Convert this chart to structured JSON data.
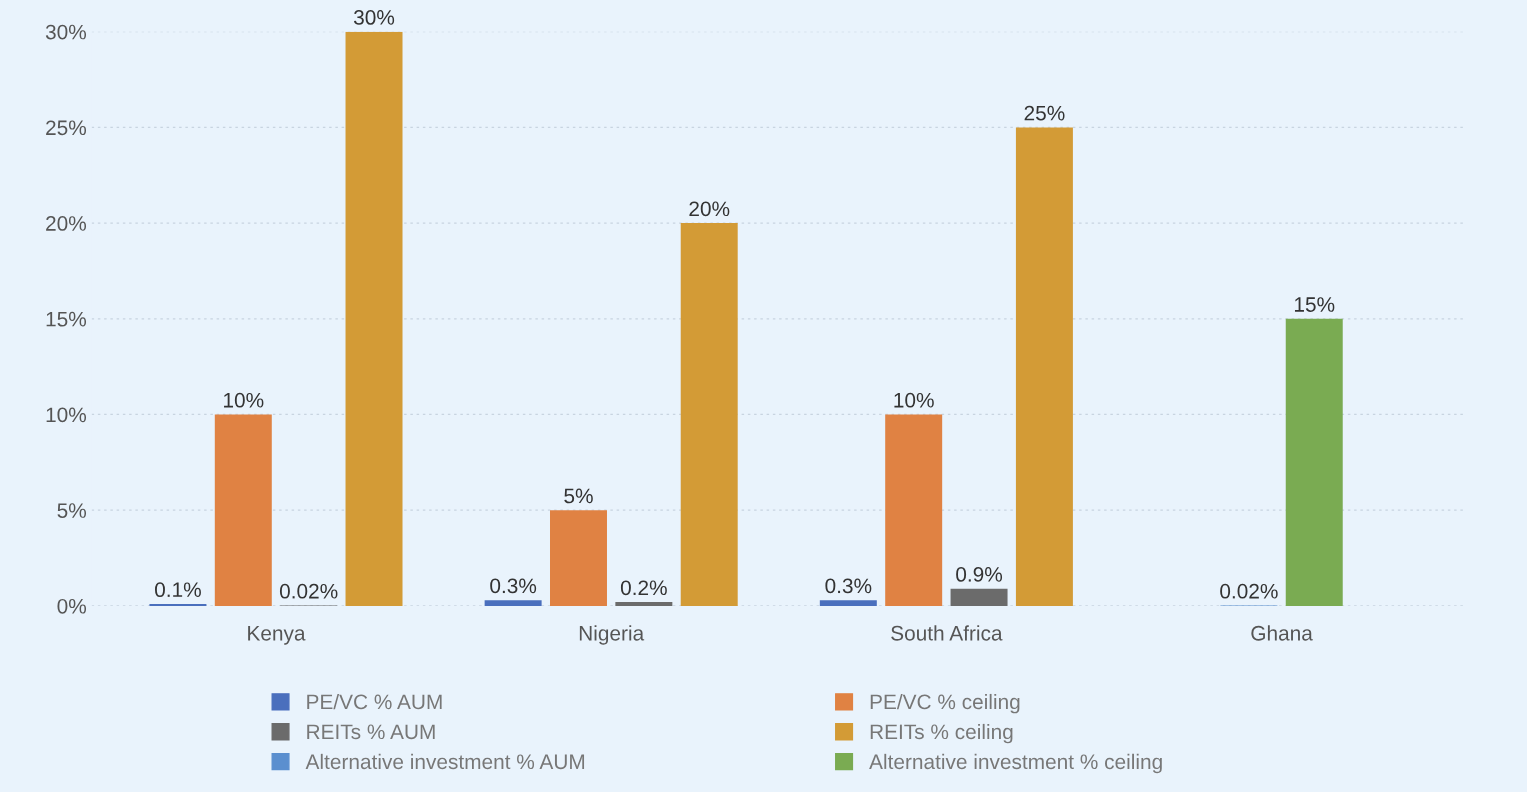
{
  "chart_data": {
    "type": "bar",
    "categories": [
      "Kenya",
      "Nigeria",
      "South Africa",
      "Ghana"
    ],
    "series": [
      {
        "name": "PE/VC % AUM",
        "color": "#4a6fbd",
        "values": [
          0.1,
          0.3,
          0.3,
          null
        ],
        "value_labels": [
          "0.1%",
          "0.3%",
          "0.3%",
          null
        ]
      },
      {
        "name": "PE/VC % ceiling",
        "color": "#e08243",
        "values": [
          10,
          5,
          10,
          null
        ],
        "value_labels": [
          "10%",
          "5%",
          "10%",
          null
        ]
      },
      {
        "name": "REITs % AUM",
        "color": "#6b6b6b",
        "values": [
          0.02,
          0.2,
          0.9,
          null
        ],
        "value_labels": [
          "0.02%",
          "0.2%",
          "0.9%",
          null
        ]
      },
      {
        "name": "REITs % ceiling",
        "color": "#d39b36",
        "values": [
          30,
          20,
          25,
          null
        ],
        "value_labels": [
          "30%",
          "20%",
          "25%",
          null
        ]
      },
      {
        "name": "Alternative investment % AUM",
        "color": "#5b8fcf",
        "values": [
          null,
          null,
          null,
          0.02
        ],
        "value_labels": [
          null,
          null,
          null,
          "0.02%"
        ]
      },
      {
        "name": "Alternative investment % ceiling",
        "color": "#7aab52",
        "values": [
          null,
          null,
          null,
          15
        ],
        "value_labels": [
          null,
          null,
          null,
          "15%"
        ]
      }
    ],
    "ylim": [
      0,
      30
    ],
    "yticks": [
      {
        "value": 0,
        "label": "0%"
      },
      {
        "value": 5,
        "label": "5%"
      },
      {
        "value": 10,
        "label": "10%"
      },
      {
        "value": 15,
        "label": "15%"
      },
      {
        "value": 20,
        "label": "20%"
      },
      {
        "value": 25,
        "label": "25%"
      },
      {
        "value": 30,
        "label": "30%"
      }
    ],
    "grid": "y",
    "legend": "bottom"
  }
}
